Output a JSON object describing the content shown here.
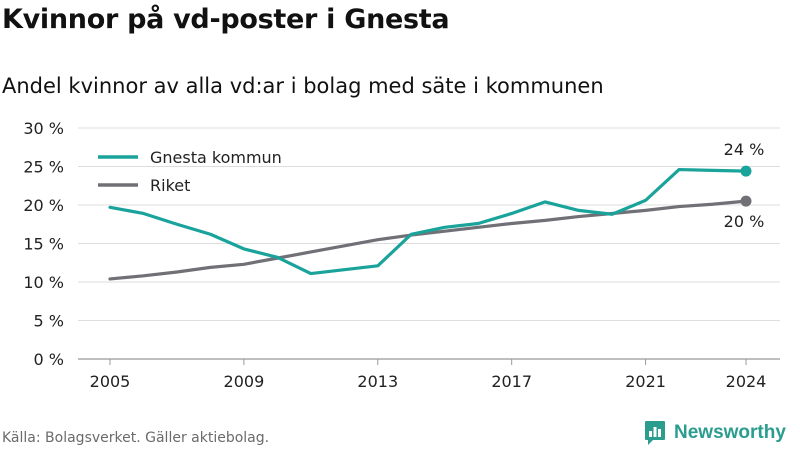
{
  "header": {
    "title": "Kvinnor på vd-poster i Gnesta",
    "subtitle": "Andel kvinnor av alla vd:ar i bolag med säte i kommunen"
  },
  "footer": {
    "source": "Källa: Bolagsverket. Gäller aktiebolag.",
    "brand": "Newsworthy",
    "brand_icon": "newsworthy-logo-icon"
  },
  "colors": {
    "gnesta": "#1aa39b",
    "riket": "#717077",
    "grid": "#dddddd",
    "brand": "#2a9d8f"
  },
  "chart_data": {
    "type": "line",
    "x": [
      2005,
      2006,
      2007,
      2008,
      2009,
      2010,
      2011,
      2012,
      2013,
      2014,
      2015,
      2016,
      2017,
      2018,
      2019,
      2020,
      2021,
      2022,
      2023,
      2024
    ],
    "series": [
      {
        "name": "Gnesta kommun",
        "values": [
          19.7,
          18.9,
          17.5,
          16.2,
          14.3,
          13.2,
          11.1,
          11.6,
          12.1,
          16.2,
          17.1,
          17.6,
          18.9,
          20.4,
          19.3,
          18.8,
          20.6,
          24.6,
          24.5,
          24.4
        ],
        "end_label": "24 %"
      },
      {
        "name": "Riket",
        "values": [
          10.4,
          10.8,
          11.3,
          11.9,
          12.3,
          13.1,
          13.9,
          14.7,
          15.5,
          16.1,
          16.6,
          17.1,
          17.6,
          18.0,
          18.5,
          18.9,
          19.3,
          19.8,
          20.1,
          20.5
        ],
        "end_label": "20 %"
      }
    ],
    "x_ticks": [
      2005,
      2009,
      2013,
      2017,
      2021,
      2024
    ],
    "x_tick_labels": [
      "2005",
      "2009",
      "2013",
      "2017",
      "2021",
      "2024"
    ],
    "y_ticks": [
      0,
      5,
      10,
      15,
      20,
      25,
      30
    ],
    "y_tick_labels": [
      "0 %",
      "5 %",
      "10 %",
      "15 %",
      "20 %",
      "25 %",
      "30 %"
    ],
    "xlim": [
      2005,
      2024
    ],
    "ylim": [
      0,
      30
    ],
    "xlabel": "",
    "ylabel": "",
    "grid": "horizontal",
    "legend_position": "top-left"
  }
}
